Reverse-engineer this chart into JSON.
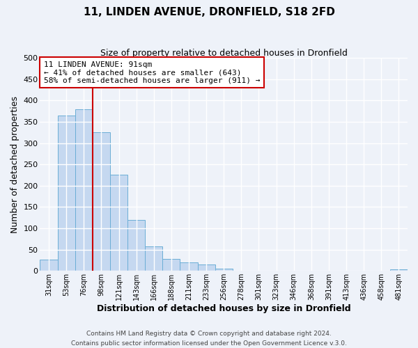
{
  "title": "11, LINDEN AVENUE, DRONFIELD, S18 2FD",
  "subtitle": "Size of property relative to detached houses in Dronfield",
  "xlabel": "Distribution of detached houses by size in Dronfield",
  "ylabel": "Number of detached properties",
  "bar_color": "#c5d8f0",
  "bar_edge_color": "#6baed6",
  "background_color": "#eef2f9",
  "grid_color": "#ffffff",
  "categories": [
    "31sqm",
    "53sqm",
    "76sqm",
    "98sqm",
    "121sqm",
    "143sqm",
    "166sqm",
    "188sqm",
    "211sqm",
    "233sqm",
    "256sqm",
    "278sqm",
    "301sqm",
    "323sqm",
    "346sqm",
    "368sqm",
    "391sqm",
    "413sqm",
    "436sqm",
    "458sqm",
    "481sqm"
  ],
  "values": [
    27,
    365,
    380,
    325,
    225,
    120,
    58,
    28,
    20,
    15,
    5,
    0,
    0,
    0,
    0,
    0,
    0,
    0,
    0,
    0,
    3
  ],
  "ylim": [
    0,
    500
  ],
  "yticks": [
    0,
    50,
    100,
    150,
    200,
    250,
    300,
    350,
    400,
    450,
    500
  ],
  "annotation_line1": "11 LINDEN AVENUE: 91sqm",
  "annotation_line2": "← 41% of detached houses are smaller (643)",
  "annotation_line3": "58% of semi-detached houses are larger (911) →",
  "footer1": "Contains HM Land Registry data © Crown copyright and database right 2024.",
  "footer2": "Contains public sector information licensed under the Open Government Licence v.3.0.",
  "red_line_color": "#cc0000",
  "annotation_box_color": "#ffffff",
  "annotation_box_edge": "#cc0000",
  "red_line_index": 2.5
}
